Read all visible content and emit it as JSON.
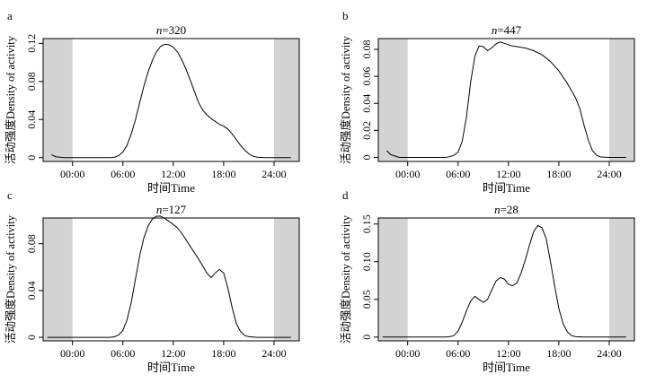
{
  "figure": {
    "xlabel": "时间Time",
    "ylabel": "活动强度Density of activity"
  },
  "colors": {
    "night_shade": "#d3d3d3",
    "line": "#000000",
    "frame": "#000000"
  },
  "chart_data": [
    {
      "panel": "a",
      "title_prefix": "n",
      "title_value": "=320",
      "type": "line",
      "x_ticks": [
        0,
        6,
        12,
        18,
        24
      ],
      "x_tick_labels": [
        "00:00",
        "06:00",
        "12:00",
        "18:00",
        "24:00"
      ],
      "xlim": [
        -3.5,
        27
      ],
      "night_ranges": [
        [
          -3.5,
          0
        ],
        [
          24,
          27
        ]
      ],
      "ylim": [
        -0.004,
        0.125
      ],
      "y_ticks": [
        0,
        0.04,
        0.08,
        0.12
      ],
      "y_tick_labels": [
        "0",
        "0.04",
        "0.08",
        "0.12"
      ],
      "x": [
        -2.5,
        -2,
        -1,
        0,
        1,
        2,
        3,
        4,
        4.5,
        5,
        5.5,
        6,
        6.5,
        7,
        7.5,
        8,
        8.5,
        9,
        9.5,
        10,
        10.5,
        11,
        11.5,
        12,
        12.5,
        13,
        13.5,
        14,
        14.5,
        15,
        15.5,
        16,
        16.5,
        17,
        17.5,
        18,
        18.5,
        19,
        19.5,
        20,
        20.5,
        21,
        21.5,
        22,
        23,
        24,
        25,
        26
      ],
      "y": [
        0.003,
        0.001,
        0,
        0,
        0,
        0,
        0,
        0,
        0,
        0.0005,
        0.002,
        0.006,
        0.013,
        0.025,
        0.04,
        0.058,
        0.075,
        0.09,
        0.102,
        0.111,
        0.117,
        0.119,
        0.1185,
        0.116,
        0.111,
        0.103,
        0.093,
        0.082,
        0.07,
        0.058,
        0.05,
        0.045,
        0.041,
        0.038,
        0.035,
        0.033,
        0.03,
        0.025,
        0.019,
        0.013,
        0.008,
        0.004,
        0.0015,
        0.0005,
        0,
        0,
        0,
        0
      ]
    },
    {
      "panel": "b",
      "title_prefix": "n",
      "title_value": "=447",
      "type": "line",
      "x_ticks": [
        0,
        6,
        12,
        18,
        24
      ],
      "x_tick_labels": [
        "00:00",
        "06:00",
        "12:00",
        "18:00",
        "24:00"
      ],
      "xlim": [
        -3.5,
        27
      ],
      "night_ranges": [
        [
          -3.5,
          0
        ],
        [
          24,
          27
        ]
      ],
      "ylim": [
        -0.003,
        0.088
      ],
      "y_ticks": [
        0,
        0.02,
        0.04,
        0.06,
        0.08
      ],
      "y_tick_labels": [
        "0",
        "0.02",
        "0.04",
        "0.06",
        "0.08"
      ],
      "x": [
        -2.5,
        -2,
        -1,
        0,
        1,
        2,
        3,
        4,
        4.5,
        5,
        5.5,
        6,
        6.5,
        7,
        7.5,
        8,
        8.5,
        9,
        9.5,
        10,
        10.5,
        11,
        11.5,
        12,
        12.5,
        13,
        13.5,
        14,
        15,
        16,
        17,
        18,
        19,
        20,
        20.5,
        21,
        21.5,
        22,
        22.5,
        23,
        24,
        25,
        26
      ],
      "y": [
        0.005,
        0.002,
        0,
        0,
        0,
        0,
        0,
        0,
        0,
        0.0005,
        0.0015,
        0.004,
        0.012,
        0.03,
        0.056,
        0.075,
        0.0825,
        0.082,
        0.079,
        0.081,
        0.084,
        0.0855,
        0.0845,
        0.0835,
        0.0825,
        0.082,
        0.0815,
        0.081,
        0.079,
        0.076,
        0.071,
        0.064,
        0.055,
        0.044,
        0.036,
        0.024,
        0.013,
        0.005,
        0.0015,
        0.0003,
        0,
        0,
        0
      ]
    },
    {
      "panel": "c",
      "title_prefix": "n",
      "title_value": "=127",
      "type": "line",
      "x_ticks": [
        0,
        6,
        12,
        18,
        24
      ],
      "x_tick_labels": [
        "00:00",
        "06:00",
        "12:00",
        "18:00",
        "24:00"
      ],
      "xlim": [
        -3.5,
        27
      ],
      "night_ranges": [
        [
          -3.5,
          0
        ],
        [
          24,
          27
        ]
      ],
      "ylim": [
        -0.003,
        0.102
      ],
      "y_ticks": [
        0,
        0.04,
        0.08
      ],
      "y_tick_labels": [
        "0",
        "0.04",
        "0.08"
      ],
      "x": [
        -3,
        -2,
        -1,
        0,
        1,
        2,
        3,
        4,
        4.5,
        5,
        5.5,
        6,
        6.5,
        7,
        7.5,
        8,
        8.5,
        9,
        9.5,
        10,
        10.5,
        11,
        11.5,
        12,
        12.5,
        13,
        13.5,
        14,
        14.5,
        15,
        15.5,
        16,
        16.5,
        17,
        17.5,
        18,
        18.5,
        19,
        19.5,
        20,
        20.5,
        21,
        22,
        23,
        24,
        25,
        26
      ],
      "y": [
        0,
        0,
        0,
        0,
        0,
        0,
        0,
        0,
        0,
        0.0005,
        0.002,
        0.006,
        0.015,
        0.03,
        0.05,
        0.07,
        0.085,
        0.095,
        0.101,
        0.1035,
        0.1035,
        0.1015,
        0.099,
        0.0965,
        0.0935,
        0.089,
        0.0835,
        0.078,
        0.0725,
        0.067,
        0.061,
        0.055,
        0.051,
        0.055,
        0.058,
        0.055,
        0.042,
        0.026,
        0.012,
        0.005,
        0.0015,
        0.0005,
        0,
        0,
        0,
        0,
        0
      ]
    },
    {
      "panel": "d",
      "title_prefix": "n",
      "title_value": "=28",
      "type": "line",
      "x_ticks": [
        0,
        6,
        12,
        18,
        24
      ],
      "x_tick_labels": [
        "00:00",
        "06:00",
        "12:00",
        "18:00",
        "24:00"
      ],
      "xlim": [
        -3.5,
        27
      ],
      "night_ranges": [
        [
          -3.5,
          0
        ],
        [
          24,
          27
        ]
      ],
      "ylim": [
        -0.005,
        0.158
      ],
      "y_ticks": [
        0,
        0.05,
        0.1,
        0.15
      ],
      "y_tick_labels": [
        "0",
        "0.05",
        "0.10",
        "0.15"
      ],
      "x": [
        -3,
        -2,
        -1,
        0,
        1,
        2,
        3,
        4,
        4.5,
        5,
        5.5,
        6,
        6.5,
        7,
        7.5,
        8,
        8.5,
        9,
        9.5,
        10,
        10.5,
        11,
        11.5,
        12,
        12.5,
        13,
        13.5,
        14,
        14.5,
        15,
        15.5,
        16,
        16.5,
        17,
        17.5,
        18,
        18.5,
        19,
        19.5,
        20,
        21,
        22,
        23,
        24,
        25,
        26
      ],
      "y": [
        0,
        0,
        0,
        0,
        0,
        0,
        0,
        0,
        0,
        0.0005,
        0.002,
        0.008,
        0.02,
        0.035,
        0.048,
        0.054,
        0.05,
        0.046,
        0.05,
        0.062,
        0.074,
        0.079,
        0.077,
        0.07,
        0.068,
        0.072,
        0.085,
        0.102,
        0.122,
        0.14,
        0.148,
        0.145,
        0.13,
        0.1,
        0.068,
        0.038,
        0.018,
        0.007,
        0.002,
        0.0005,
        0,
        0,
        0,
        0,
        0,
        0
      ]
    }
  ]
}
